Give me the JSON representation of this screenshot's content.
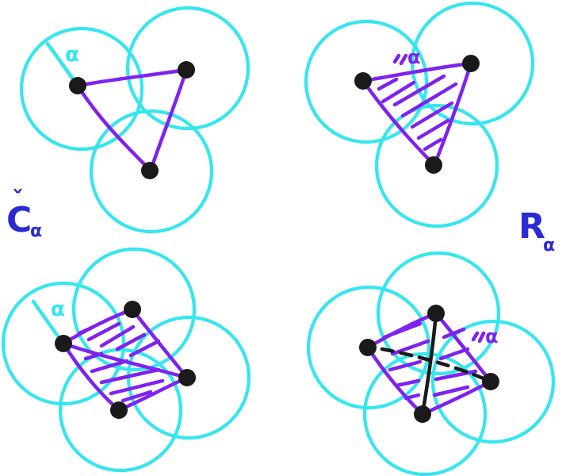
{
  "colors": {
    "circle": "#35E6EE",
    "edge": "#7F22F0",
    "vertex": "#1A1A1A",
    "label": "#2B2BD6",
    "background": "#FFFFFF"
  },
  "labels": {
    "alpha": "α",
    "cech_letter": "C",
    "cech_accent": "ˇ",
    "cech_subscript": "α",
    "rips_letter": "R",
    "rips_subscript": "α"
  },
  "panels": [
    {
      "id": "top-left",
      "description_shape": "triangle",
      "filled": false
    },
    {
      "id": "top-right",
      "description_shape": "triangle",
      "filled": true
    },
    {
      "id": "bottom-left",
      "description_shape": "quadrilateral",
      "filled": true
    },
    {
      "id": "bottom-right",
      "description_shape": "quadrilateral",
      "filled": true
    }
  ]
}
